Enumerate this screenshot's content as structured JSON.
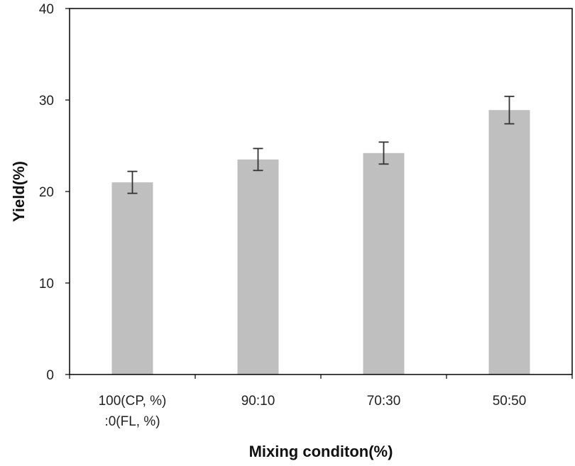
{
  "chart_data": {
    "type": "bar",
    "categories": [
      [
        "100(CP, %)",
        ":0(FL, %)"
      ],
      [
        "90:10"
      ],
      [
        "70:30"
      ],
      [
        "50:50"
      ]
    ],
    "values": [
      21.0,
      23.5,
      24.2,
      28.9
    ],
    "error": [
      1.2,
      1.2,
      1.2,
      1.5
    ],
    "xlabel": "Mixing conditon(%)",
    "ylabel": "Yield(%)",
    "ylim": [
      0,
      40
    ],
    "yticks": [
      0,
      10,
      20,
      30,
      40
    ],
    "grid": false,
    "bar_color": "#bfbfbf",
    "error_color": "#333333"
  }
}
